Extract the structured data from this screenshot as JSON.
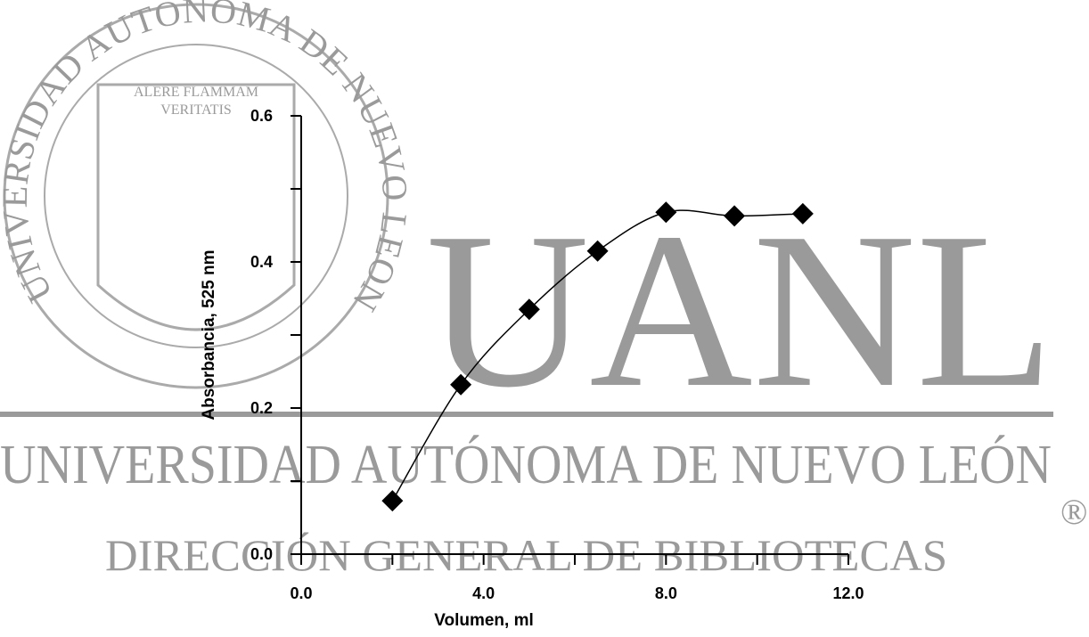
{
  "watermark": {
    "logo": "UANL",
    "university": "UNIVERSIDAD AUTÓNOMA DE NUEVO LEÓN",
    "department": "DIRECCIÓN GENERAL DE BIBLIOTECAS",
    "registered": "®",
    "seal": "UNIVERSIDAD AUTONOMA DE NUEVO LEON",
    "motto": "ALERE FLAMMAM",
    "motto2": "VERITATIS"
  },
  "chart_data": {
    "type": "line",
    "xlabel": "Volumen, ml",
    "ylabel": "Absorbancia, 525 nm",
    "x": [
      2.0,
      3.5,
      5.0,
      6.5,
      8.0,
      9.5,
      11.0
    ],
    "series": [
      {
        "color": "#000000",
        "values": [
          0.073,
          0.232,
          0.335,
          0.415,
          0.468,
          0.463,
          0.466
        ]
      }
    ],
    "xlim": [
      0,
      12
    ],
    "ylim": [
      0,
      0.6
    ],
    "xticks": [
      {
        "value": 0,
        "label": "0.0"
      },
      {
        "value": 4,
        "label": "4.0"
      },
      {
        "value": 8,
        "label": "8.0"
      },
      {
        "value": 12,
        "label": "12.0"
      }
    ],
    "xminor_ticks": [
      2,
      6,
      10
    ],
    "yticks": [
      {
        "value": 0,
        "label": "0.0"
      },
      {
        "value": 0.2,
        "label": "0.2"
      },
      {
        "value": 0.4,
        "label": "0.4"
      },
      {
        "value": 0.6,
        "label": "0.6"
      }
    ],
    "yminor_ticks": [
      0.1,
      0.3,
      0.5
    ],
    "marker": "diamond",
    "grid": false
  }
}
